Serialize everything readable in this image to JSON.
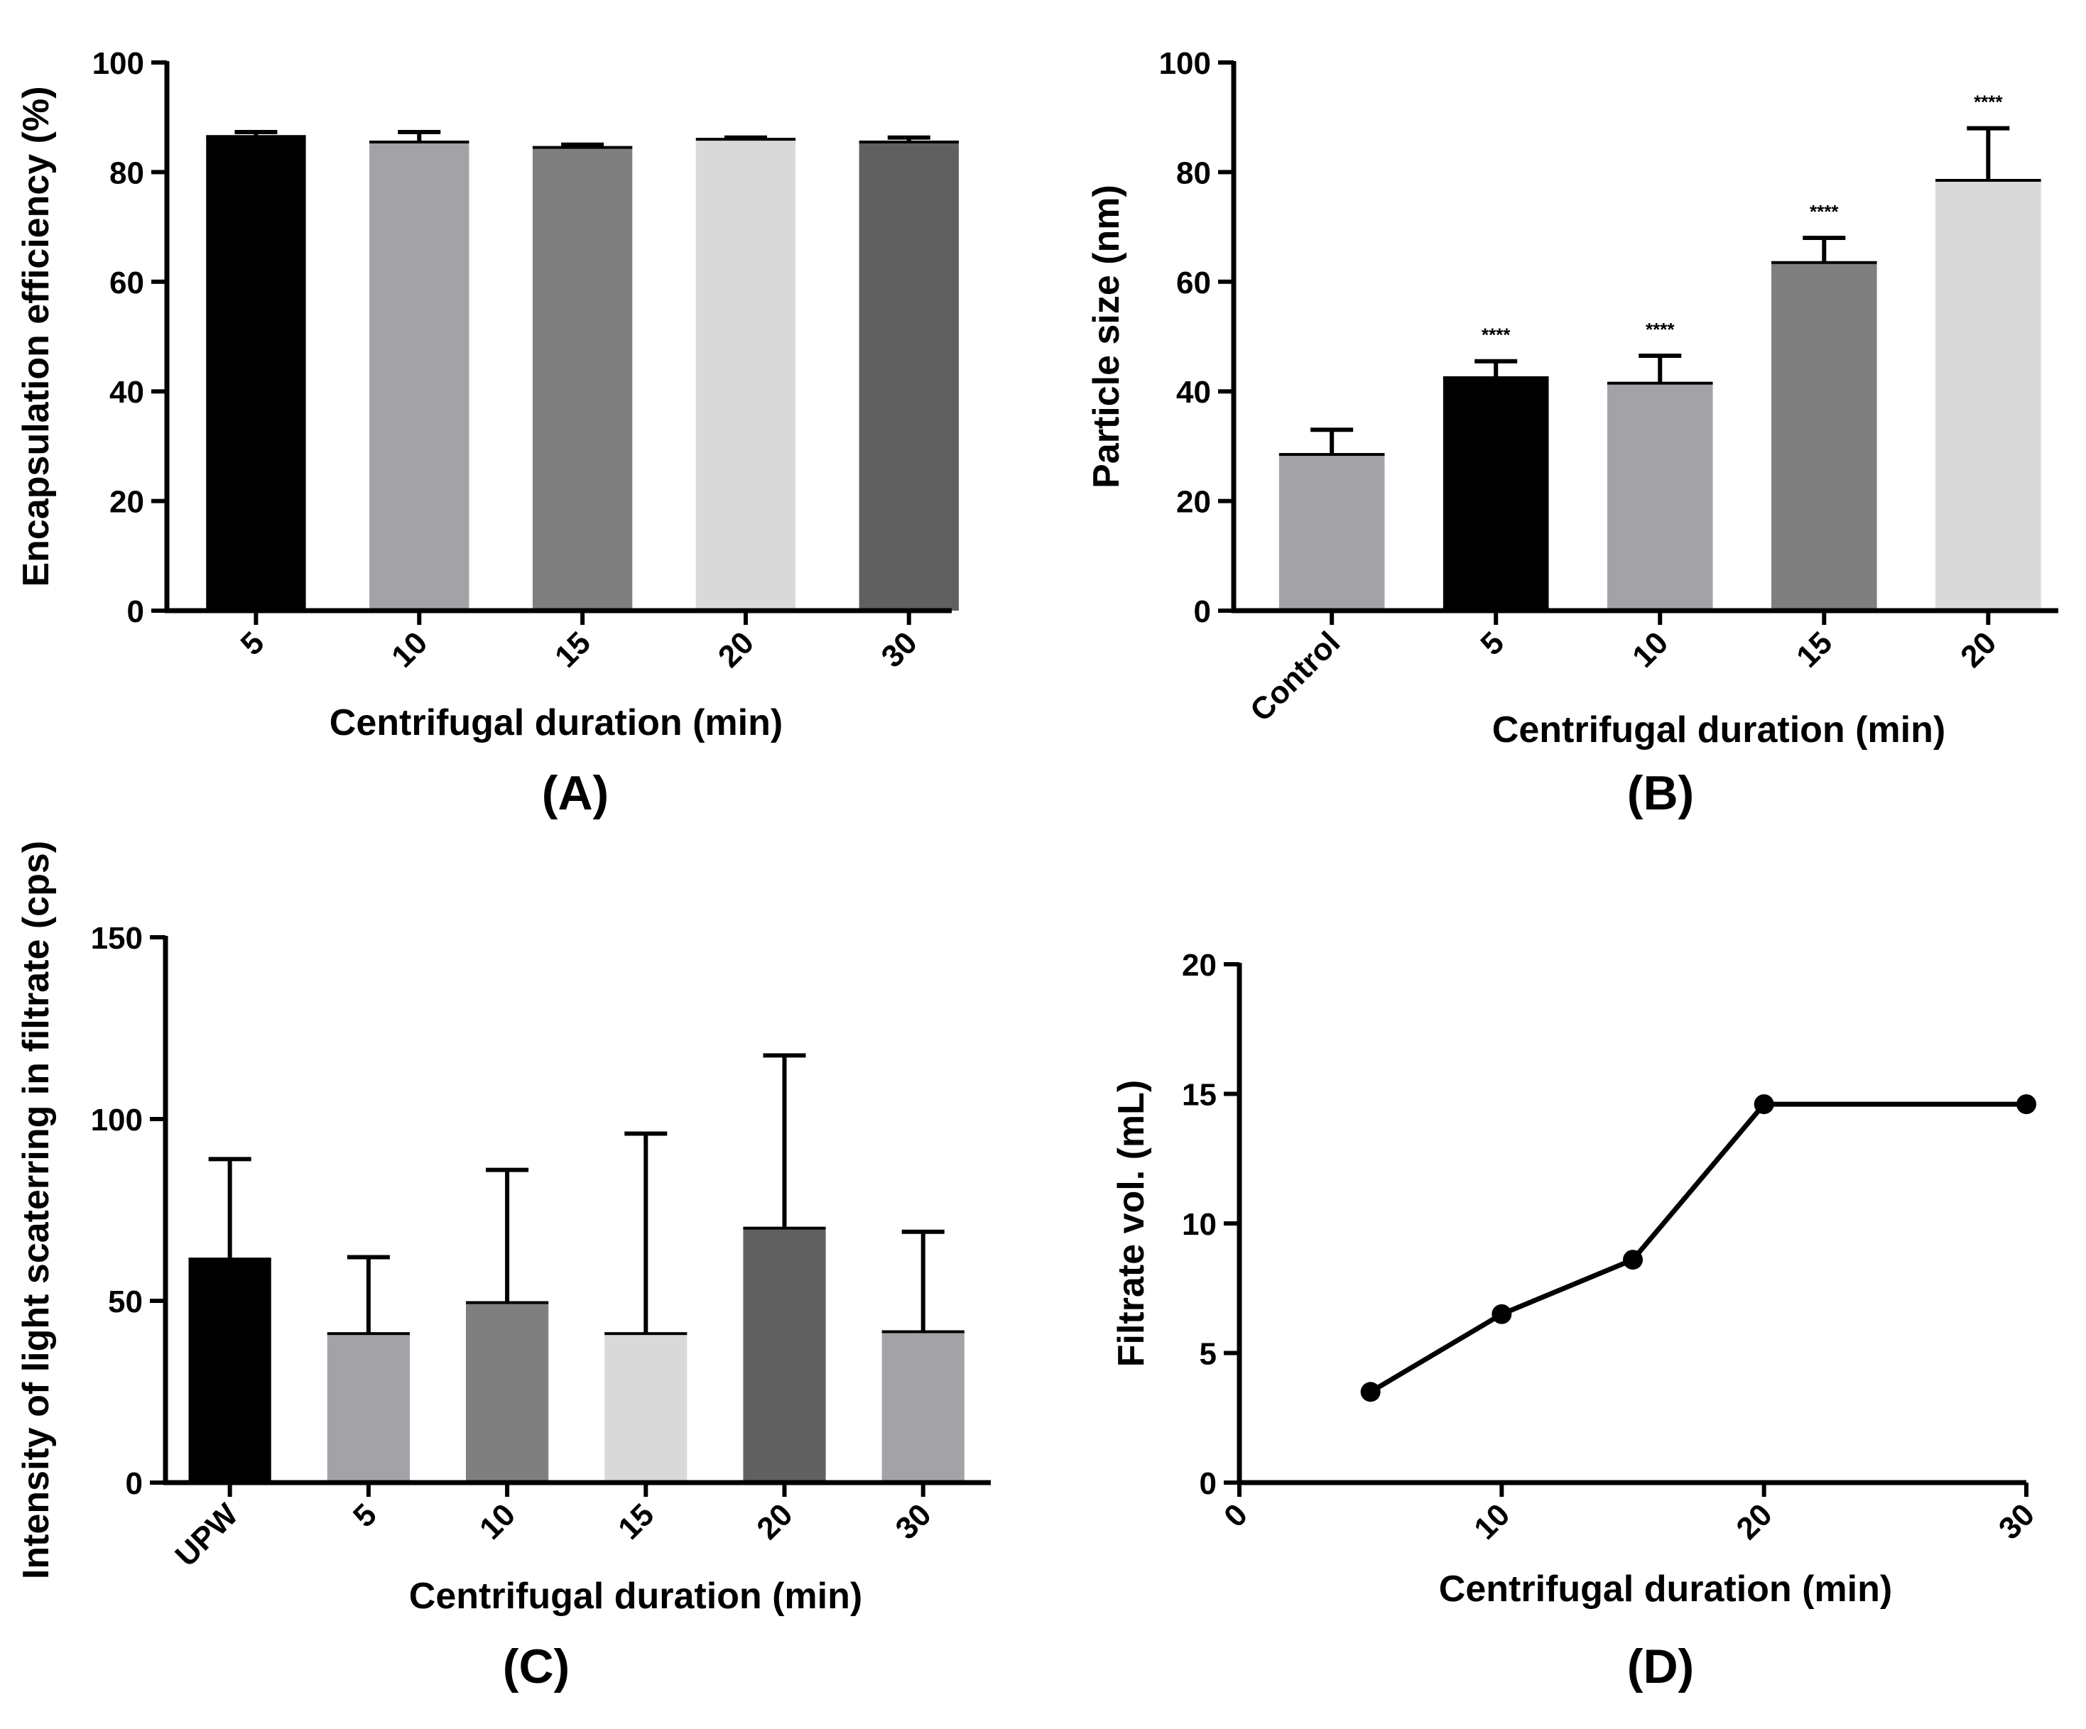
{
  "chart_data": [
    {
      "panel": "(A)",
      "type": "bar",
      "categories": [
        "5",
        "10",
        "15",
        "20",
        "30"
      ],
      "values": [
        86.5,
        85.5,
        84.5,
        86,
        85.5
      ],
      "errors": [
        0.8,
        1.8,
        0.5,
        0.3,
        0.8
      ],
      "colors": [
        "#000000",
        "#a3a2a7",
        "#7f7f7f",
        "#d9d9d9",
        "#606060"
      ],
      "xlabel": "Centrifugal duration (min)",
      "ylabel": "Encapsulation efficiency (%)",
      "ylim": [
        0,
        100
      ],
      "yticks": [
        "0",
        "20",
        "40",
        "60",
        "80",
        "100"
      ]
    },
    {
      "panel": "(B)",
      "type": "bar",
      "categories": [
        "Control",
        "5",
        "10",
        "15",
        "20"
      ],
      "values": [
        28.5,
        42.5,
        41.5,
        63.5,
        78.5
      ],
      "errors": [
        4.5,
        3,
        5,
        4.5,
        9.5
      ],
      "annotations": [
        "",
        "****",
        "****",
        "****",
        "****"
      ],
      "colors": [
        "#a3a2a7",
        "#000000",
        "#a3a2a7",
        "#7f7f7f",
        "#d9d9d9"
      ],
      "xlabel": "Centrifugal duration (min)",
      "ylabel": "Particle size (nm)",
      "ylim": [
        0,
        100
      ],
      "yticks": [
        "0",
        "20",
        "40",
        "60",
        "80",
        "100"
      ]
    },
    {
      "panel": "(C)",
      "type": "bar",
      "categories": [
        "UPW",
        "5",
        "10",
        "15",
        "20",
        "30"
      ],
      "values": [
        61.5,
        41,
        49.5,
        41,
        70,
        41.5
      ],
      "errors": [
        27.5,
        21,
        36.5,
        55,
        47.5,
        27.5
      ],
      "colors": [
        "#000000",
        "#a3a2a7",
        "#7f7f7f",
        "#d9d9d9",
        "#606060",
        "#a3a2a7"
      ],
      "xlabel": "Centrifugal duration (min)",
      "ylabel": "Intensity of light scaterring in filtrate (cps)",
      "ylim": [
        0,
        150
      ],
      "yticks": [
        "0",
        "50",
        "100",
        "150"
      ]
    },
    {
      "panel": "(D)",
      "type": "line",
      "x": [
        5,
        10,
        15,
        20,
        30
      ],
      "y": [
        3.5,
        6.5,
        8.6,
        14.6,
        14.6
      ],
      "xlim": [
        0,
        30
      ],
      "xticks": [
        "0",
        "10",
        "20",
        "30"
      ],
      "xlabel": "Centrifugal duration (min)",
      "ylabel": "Filtrate vol. (mL)",
      "ylim": [
        0,
        20
      ],
      "yticks": [
        "0",
        "5",
        "10",
        "15",
        "20"
      ]
    }
  ]
}
